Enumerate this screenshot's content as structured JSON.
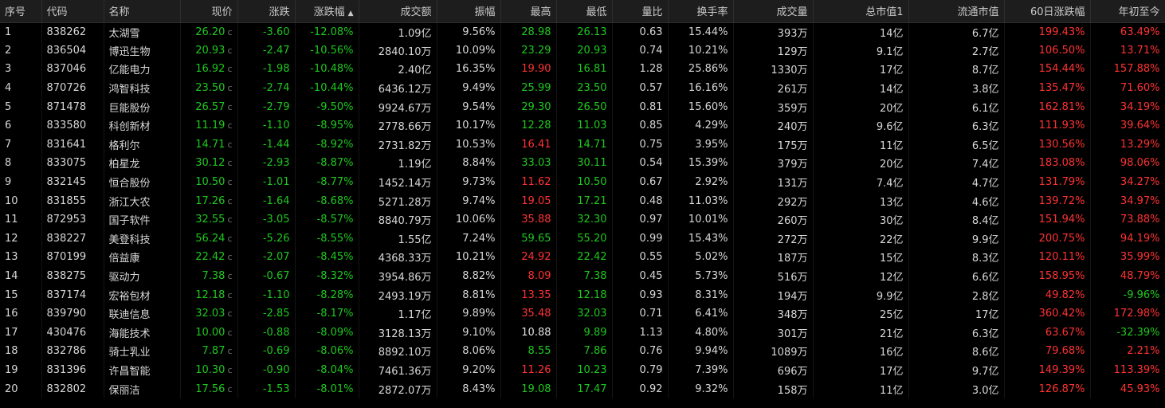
{
  "colors": {
    "up": "#ff3232",
    "down": "#1ec81e",
    "flat": "#e0e0e0",
    "background": "#000000",
    "header_bg": "#1d1d1d"
  },
  "columns": [
    "序号",
    "代码",
    "名称",
    "现价",
    "涨跌",
    "涨跌幅",
    "成交额",
    "振幅",
    "最高",
    "最低",
    "量比",
    "换手率",
    "成交量",
    "总市值1",
    "流通市值",
    "60日涨跌幅",
    "年初至今"
  ],
  "sorted_column": "涨跌幅",
  "price_flag": "c",
  "rows": [
    [
      "1",
      "838262",
      "太湖雪",
      "26.20",
      "-3.60",
      "-12.08%",
      "1.09亿",
      "9.56%",
      "28.98",
      "26.13",
      "0.63",
      "15.44%",
      "393万",
      "14亿",
      "6.7亿",
      "199.43%",
      "63.49%"
    ],
    [
      "2",
      "836504",
      "博迅生物",
      "20.93",
      "-2.47",
      "-10.56%",
      "2840.10万",
      "10.09%",
      "23.29",
      "20.93",
      "0.74",
      "10.21%",
      "129万",
      "9.1亿",
      "2.7亿",
      "106.50%",
      "13.71%"
    ],
    [
      "3",
      "837046",
      "亿能电力",
      "16.92",
      "-1.98",
      "-10.48%",
      "2.40亿",
      "16.35%",
      "19.90",
      "16.81",
      "1.28",
      "25.86%",
      "1330万",
      "17亿",
      "8.7亿",
      "154.44%",
      "157.88%"
    ],
    [
      "4",
      "870726",
      "鸿智科技",
      "23.50",
      "-2.74",
      "-10.44%",
      "6436.12万",
      "9.49%",
      "25.99",
      "23.50",
      "0.57",
      "16.16%",
      "261万",
      "14亿",
      "3.8亿",
      "135.47%",
      "71.60%"
    ],
    [
      "5",
      "871478",
      "巨能股份",
      "26.57",
      "-2.79",
      "-9.50%",
      "9924.67万",
      "9.54%",
      "29.30",
      "26.50",
      "0.81",
      "15.60%",
      "359万",
      "20亿",
      "6.1亿",
      "162.81%",
      "34.19%"
    ],
    [
      "6",
      "833580",
      "科创新材",
      "11.19",
      "-1.10",
      "-8.95%",
      "2778.66万",
      "10.17%",
      "12.28",
      "11.03",
      "0.85",
      "4.29%",
      "240万",
      "9.6亿",
      "6.3亿",
      "111.93%",
      "39.64%"
    ],
    [
      "7",
      "831641",
      "格利尔",
      "14.71",
      "-1.44",
      "-8.92%",
      "2731.82万",
      "10.53%",
      "16.41",
      "14.71",
      "0.75",
      "3.95%",
      "175万",
      "11亿",
      "6.5亿",
      "130.56%",
      "13.29%"
    ],
    [
      "8",
      "833075",
      "柏星龙",
      "30.12",
      "-2.93",
      "-8.87%",
      "1.19亿",
      "8.84%",
      "33.03",
      "30.11",
      "0.54",
      "15.39%",
      "379万",
      "20亿",
      "7.4亿",
      "183.08%",
      "98.06%"
    ],
    [
      "9",
      "832145",
      "恒合股份",
      "10.50",
      "-1.01",
      "-8.77%",
      "1452.14万",
      "9.73%",
      "11.62",
      "10.50",
      "0.67",
      "2.92%",
      "131万",
      "7.4亿",
      "4.7亿",
      "131.79%",
      "34.27%"
    ],
    [
      "10",
      "831855",
      "浙江大农",
      "17.26",
      "-1.64",
      "-8.68%",
      "5271.28万",
      "9.74%",
      "19.05",
      "17.21",
      "0.48",
      "11.03%",
      "292万",
      "13亿",
      "4.6亿",
      "139.72%",
      "34.97%"
    ],
    [
      "11",
      "872953",
      "国子软件",
      "32.55",
      "-3.05",
      "-8.57%",
      "8840.79万",
      "10.06%",
      "35.88",
      "32.30",
      "0.97",
      "10.01%",
      "260万",
      "30亿",
      "8.4亿",
      "151.94%",
      "73.88%"
    ],
    [
      "12",
      "838227",
      "美登科技",
      "56.24",
      "-5.26",
      "-8.55%",
      "1.55亿",
      "7.24%",
      "59.65",
      "55.20",
      "0.99",
      "15.43%",
      "272万",
      "22亿",
      "9.9亿",
      "200.75%",
      "94.19%"
    ],
    [
      "13",
      "870199",
      "倍益康",
      "22.42",
      "-2.07",
      "-8.45%",
      "4368.33万",
      "10.21%",
      "24.92",
      "22.42",
      "0.55",
      "5.02%",
      "187万",
      "15亿",
      "8.3亿",
      "120.11%",
      "35.99%"
    ],
    [
      "14",
      "838275",
      "驱动力",
      "7.38",
      "-0.67",
      "-8.32%",
      "3954.86万",
      "8.82%",
      "8.09",
      "7.38",
      "0.45",
      "5.73%",
      "516万",
      "12亿",
      "6.6亿",
      "158.95%",
      "48.79%"
    ],
    [
      "15",
      "837174",
      "宏裕包材",
      "12.18",
      "-1.10",
      "-8.28%",
      "2493.19万",
      "8.81%",
      "13.35",
      "12.18",
      "0.93",
      "8.31%",
      "194万",
      "9.9亿",
      "2.8亿",
      "49.82%",
      "-9.96%"
    ],
    [
      "16",
      "839790",
      "联迪信息",
      "32.03",
      "-2.85",
      "-8.17%",
      "1.17亿",
      "9.89%",
      "35.48",
      "32.03",
      "0.71",
      "6.41%",
      "348万",
      "25亿",
      "17亿",
      "360.42%",
      "172.98%"
    ],
    [
      "17",
      "430476",
      "海能技术",
      "10.00",
      "-0.88",
      "-8.09%",
      "3128.13万",
      "9.10%",
      "10.88",
      "9.89",
      "1.13",
      "4.80%",
      "301万",
      "21亿",
      "6.3亿",
      "63.67%",
      "-32.39%"
    ],
    [
      "18",
      "832786",
      "骑士乳业",
      "7.87",
      "-0.69",
      "-8.06%",
      "8892.10万",
      "8.06%",
      "8.55",
      "7.86",
      "0.76",
      "9.94%",
      "1089万",
      "16亿",
      "8.6亿",
      "79.68%",
      "2.21%"
    ],
    [
      "19",
      "831396",
      "许昌智能",
      "10.30",
      "-0.90",
      "-8.04%",
      "7461.36万",
      "9.20%",
      "11.26",
      "10.23",
      "0.79",
      "7.39%",
      "696万",
      "17亿",
      "9.7亿",
      "149.39%",
      "113.39%"
    ],
    [
      "20",
      "832802",
      "保丽洁",
      "17.56",
      "-1.53",
      "-8.01%",
      "2872.07万",
      "8.43%",
      "19.08",
      "17.47",
      "0.92",
      "9.32%",
      "158万",
      "11亿",
      "3.0亿",
      "126.87%",
      "45.93%"
    ]
  ],
  "high_color": [
    "down",
    "down",
    "up",
    "down",
    "down",
    "down",
    "up",
    "down",
    "up",
    "up",
    "up",
    "down",
    "up",
    "up",
    "up",
    "up",
    "flat",
    "down",
    "up",
    "down"
  ],
  "low_color": [
    "down",
    "down",
    "down",
    "down",
    "down",
    "down",
    "down",
    "down",
    "down",
    "down",
    "down",
    "down",
    "down",
    "down",
    "down",
    "down",
    "down",
    "down",
    "down",
    "down"
  ]
}
